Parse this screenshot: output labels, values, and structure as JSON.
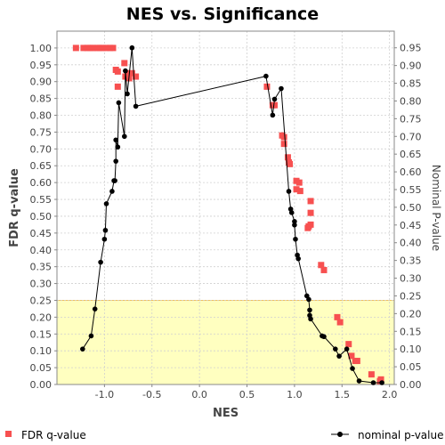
{
  "chart_data": {
    "type": "scatter",
    "title": "NES vs. Significance",
    "xlabel": "NES",
    "ylabel_left": "FDR q-value",
    "ylabel_right": "Nominal P-value",
    "xlim": [
      -1.5,
      2.05
    ],
    "ylim_left": [
      0,
      1.05
    ],
    "ylim_right": [
      0,
      0.997
    ],
    "xticks": [
      "-1.0",
      "-0.5",
      "0.0",
      "0.5",
      "1.0",
      "1.5",
      "2.0"
    ],
    "xtick_values": [
      -1.0,
      -0.5,
      0.0,
      0.5,
      1.0,
      1.5,
      2.0
    ],
    "yticks_left": [
      "0.00",
      "0.05",
      "0.10",
      "0.15",
      "0.20",
      "0.25",
      "0.30",
      "0.35",
      "0.40",
      "0.45",
      "0.50",
      "0.55",
      "0.60",
      "0.65",
      "0.70",
      "0.75",
      "0.80",
      "0.85",
      "0.90",
      "0.95",
      "1.00"
    ],
    "yticks_right": [
      "0.00",
      "0.05",
      "0.10",
      "0.15",
      "0.20",
      "0.25",
      "0.30",
      "0.35",
      "0.40",
      "0.45",
      "0.50",
      "0.55",
      "0.60",
      "0.65",
      "0.70",
      "0.75",
      "0.80",
      "0.85",
      "0.90",
      "0.95"
    ],
    "highlight_region": {
      "ymax_left": 0.25,
      "color": "#ffffc0",
      "border_color": "#f0c060"
    },
    "grid": true,
    "legend_placement": "bottom",
    "series": [
      {
        "name": "FDR q-value",
        "axis": "left",
        "marker": "square",
        "color": "#f75050",
        "points": [
          [
            -1.3,
            1.0
          ],
          [
            -1.22,
            1.0
          ],
          [
            -1.18,
            1.0
          ],
          [
            -1.15,
            1.0
          ],
          [
            -1.12,
            1.0
          ],
          [
            -1.08,
            1.0
          ],
          [
            -1.05,
            1.0
          ],
          [
            -1.02,
            1.0
          ],
          [
            -0.98,
            1.0
          ],
          [
            -0.94,
            1.0
          ],
          [
            -0.91,
            1.0
          ],
          [
            -0.88,
            0.935
          ],
          [
            -0.86,
            0.93
          ],
          [
            -0.86,
            0.885
          ],
          [
            -0.79,
            0.955
          ],
          [
            -0.78,
            0.915
          ],
          [
            -0.76,
            0.925
          ],
          [
            -0.74,
            0.91
          ],
          [
            -0.71,
            0.925
          ],
          [
            -0.67,
            0.915
          ],
          [
            0.71,
            0.885
          ],
          [
            0.77,
            0.83
          ],
          [
            0.79,
            0.83
          ],
          [
            0.87,
            0.74
          ],
          [
            0.89,
            0.735
          ],
          [
            0.89,
            0.715
          ],
          [
            0.93,
            0.675
          ],
          [
            0.94,
            0.66
          ],
          [
            0.95,
            0.655
          ],
          [
            1.02,
            0.605
          ],
          [
            1.02,
            0.58
          ],
          [
            1.05,
            0.6
          ],
          [
            1.06,
            0.575
          ],
          [
            1.14,
            0.465
          ],
          [
            1.15,
            0.47
          ],
          [
            1.17,
            0.475
          ],
          [
            1.17,
            0.51
          ],
          [
            1.17,
            0.545
          ],
          [
            1.28,
            0.355
          ],
          [
            1.31,
            0.34
          ],
          [
            1.45,
            0.2
          ],
          [
            1.48,
            0.185
          ],
          [
            1.57,
            0.12
          ],
          [
            1.6,
            0.085
          ],
          [
            1.64,
            0.07
          ],
          [
            1.66,
            0.07
          ],
          [
            1.81,
            0.03
          ],
          [
            1.9,
            0.01
          ],
          [
            1.91,
            0.015
          ]
        ]
      },
      {
        "name": "nominal p-value",
        "axis": "right",
        "marker": "circle",
        "color": "#000000",
        "points": [
          [
            -1.23,
            0.1
          ],
          [
            -1.14,
            0.137
          ],
          [
            -1.1,
            0.213
          ],
          [
            -1.04,
            0.345
          ],
          [
            -1.0,
            0.41
          ],
          [
            -0.99,
            0.435
          ],
          [
            -0.98,
            0.51
          ],
          [
            -0.92,
            0.545
          ],
          [
            -0.9,
            0.575
          ],
          [
            -0.89,
            0.575
          ],
          [
            -0.88,
            0.63
          ],
          [
            -0.88,
            0.69
          ],
          [
            -0.86,
            0.67
          ],
          [
            -0.85,
            0.795
          ],
          [
            -0.79,
            0.7
          ],
          [
            -0.78,
            0.885
          ],
          [
            -0.76,
            0.82
          ],
          [
            -0.71,
            0.95
          ],
          [
            -0.67,
            0.785
          ],
          [
            0.7,
            0.87
          ],
          [
            0.77,
            0.76
          ],
          [
            0.79,
            0.805
          ],
          [
            0.86,
            0.835
          ],
          [
            0.94,
            0.545
          ],
          [
            0.96,
            0.495
          ],
          [
            0.97,
            0.485
          ],
          [
            1.0,
            0.46
          ],
          [
            1.0,
            0.45
          ],
          [
            1.01,
            0.41
          ],
          [
            1.03,
            0.365
          ],
          [
            1.04,
            0.355
          ],
          [
            1.13,
            0.25
          ],
          [
            1.15,
            0.24
          ],
          [
            1.16,
            0.21
          ],
          [
            1.16,
            0.195
          ],
          [
            1.17,
            0.185
          ],
          [
            1.29,
            0.137
          ],
          [
            1.31,
            0.135
          ],
          [
            1.43,
            0.1
          ],
          [
            1.47,
            0.08
          ],
          [
            1.55,
            0.1
          ],
          [
            1.61,
            0.045
          ],
          [
            1.68,
            0.01
          ],
          [
            1.83,
            0.005
          ],
          [
            1.92,
            0.005
          ]
        ]
      }
    ],
    "legend": [
      {
        "label": "FDR q-value",
        "marker": "square",
        "color": "#f75050"
      },
      {
        "label": "nominal p-value",
        "marker": "circle-line",
        "color": "#000000"
      }
    ]
  }
}
